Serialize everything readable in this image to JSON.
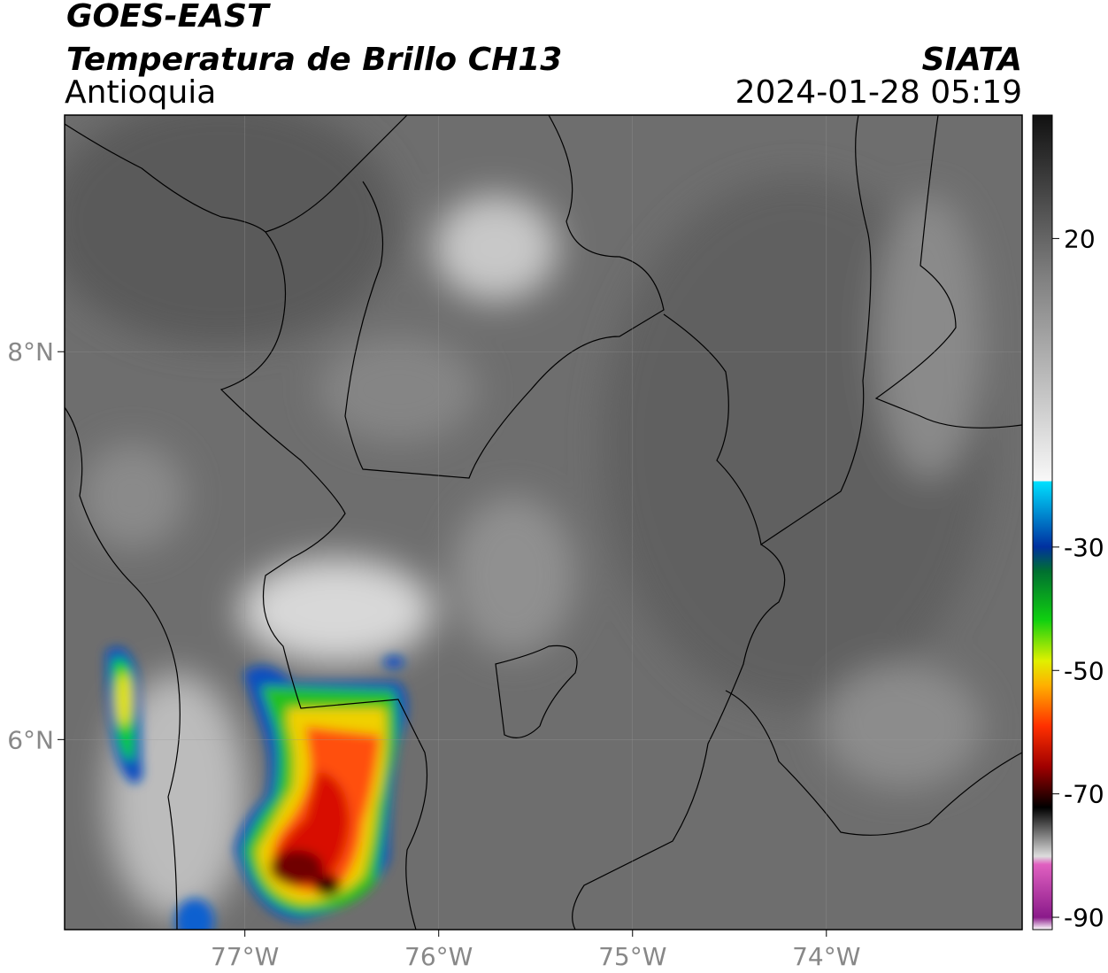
{
  "header": {
    "title": "GOES-EAST",
    "subtitle": "Temperatura de Brillo CH13",
    "region": "Antioquia",
    "source": "SIATA",
    "datetime": "2024-01-28 05:19"
  },
  "map": {
    "xlim": [
      -77.93,
      -72.99
    ],
    "ylim": [
      5.02,
      9.22
    ],
    "xticks": [
      {
        "value": -77,
        "label": "77°W"
      },
      {
        "value": -76,
        "label": "76°W"
      },
      {
        "value": -75,
        "label": "75°W"
      },
      {
        "value": -74,
        "label": "74°W"
      }
    ],
    "yticks": [
      {
        "value": 8,
        "label": "8°N"
      },
      {
        "value": 6,
        "label": "6°N"
      }
    ]
  },
  "colorbar": {
    "lim": [
      -92,
      40
    ],
    "ticks": [
      20,
      -30,
      -50,
      -70,
      -90
    ]
  }
}
